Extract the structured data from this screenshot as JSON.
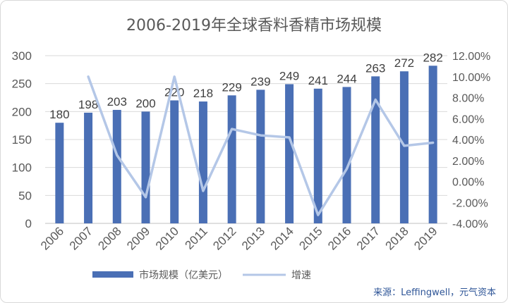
{
  "chart_data": {
    "type": "bar",
    "title": "2006-2019年全球香料香精市场规模",
    "categories": [
      "2006",
      "2007",
      "2008",
      "2009",
      "2010",
      "2011",
      "2012",
      "2013",
      "2014",
      "2015",
      "2016",
      "2017",
      "2018",
      "2019"
    ],
    "series": [
      {
        "name": "市场规模（亿美元）",
        "type": "bar",
        "axis": "left",
        "color": "#4a6fb5",
        "values": [
          180,
          198,
          203,
          200,
          220,
          218,
          229,
          239,
          249,
          241,
          244,
          263,
          272,
          282
        ]
      },
      {
        "name": "增速",
        "type": "line",
        "axis": "right",
        "color": "#b4c7e7",
        "values": [
          null,
          10.0,
          2.5,
          -1.5,
          10.0,
          -0.9,
          5.0,
          4.4,
          4.2,
          -3.2,
          1.2,
          7.8,
          3.4,
          3.7
        ]
      }
    ],
    "y_left": {
      "min": 0,
      "max": 300,
      "ticks": [
        "0",
        "50",
        "100",
        "150",
        "200",
        "250",
        "300"
      ]
    },
    "y_right": {
      "min": -4,
      "max": 12,
      "ticks": [
        "-4.00%",
        "-2.00%",
        "0.00%",
        "2.00%",
        "4.00%",
        "6.00%",
        "8.00%",
        "10.00%",
        "12.00%"
      ]
    },
    "grid": true,
    "legend": "bottom"
  },
  "source": "来源：Leffingwell，元气资本"
}
